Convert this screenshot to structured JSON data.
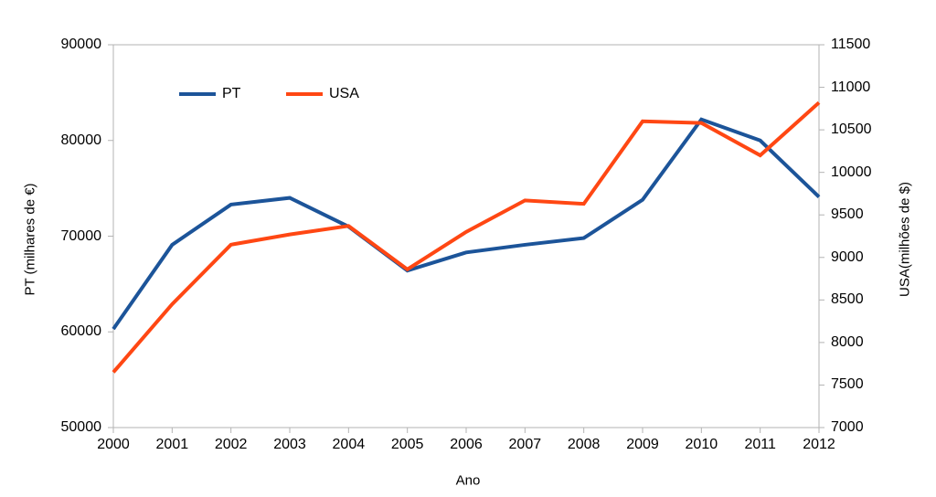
{
  "chart_data": {
    "type": "line",
    "title": "",
    "xlabel": "Ano",
    "x": [
      2000,
      2001,
      2002,
      2003,
      2004,
      2005,
      2006,
      2007,
      2008,
      2009,
      2010,
      2011,
      2012
    ],
    "x_tick_labels": [
      "2000",
      "2001",
      "2002",
      "2003",
      "2004",
      "2005",
      "2006",
      "2007",
      "2008",
      "2009",
      "2010",
      "2011",
      "2012"
    ],
    "series": [
      {
        "name": "PT",
        "axis": "left",
        "color": "#1C5499",
        "values": [
          60300,
          69100,
          73300,
          74000,
          71000,
          66400,
          68300,
          69100,
          69800,
          73800,
          82200,
          80000,
          74100
        ]
      },
      {
        "name": "USA",
        "axis": "right",
        "color": "#FF4713",
        "values": [
          7650,
          8450,
          9150,
          9270,
          9370,
          8860,
          9300,
          9670,
          9630,
          10600,
          10580,
          10200,
          10820
        ]
      }
    ],
    "left_axis": {
      "label": "PT (milhares de €)",
      "min": 50000,
      "max": 90000,
      "step": 10000,
      "tick_labels": [
        "90000",
        "80000",
        "70000",
        "60000",
        "50000"
      ]
    },
    "right_axis": {
      "label": "USA(milhões de $)",
      "min": 7000,
      "max": 11500,
      "step": 500,
      "tick_labels": [
        "11500",
        "11000",
        "10500",
        "10000",
        "9500",
        "9000",
        "8500",
        "8000",
        "7500",
        "7000"
      ]
    },
    "grid": "frame-only",
    "legend_position": "inside-top-left",
    "frame_color": "#b3b3b3"
  },
  "legend": {
    "pt_label": "PT",
    "usa_label": "USA"
  }
}
